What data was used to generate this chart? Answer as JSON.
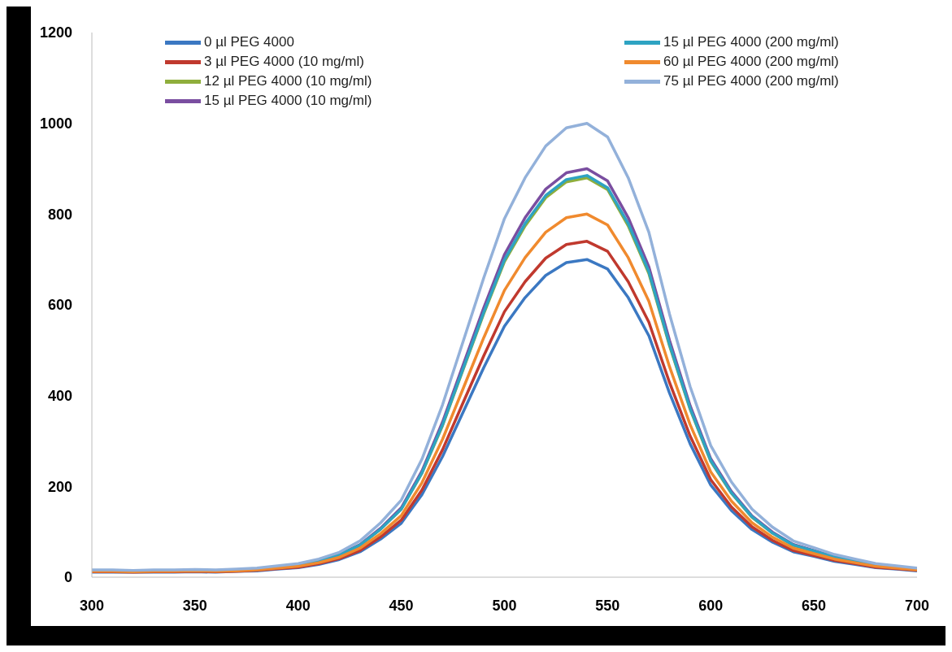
{
  "chart_data": {
    "type": "line",
    "legend": "top",
    "grid": false,
    "marker": "none",
    "line_style": "solid",
    "x": [
      300,
      310,
      320,
      330,
      340,
      350,
      360,
      370,
      380,
      390,
      400,
      410,
      420,
      430,
      440,
      450,
      460,
      470,
      480,
      490,
      500,
      510,
      520,
      530,
      540,
      550,
      560,
      570,
      580,
      590,
      600,
      610,
      620,
      630,
      640,
      650,
      660,
      670,
      680,
      690,
      700
    ],
    "xlim": [
      300,
      700
    ],
    "xticks": [
      300,
      350,
      400,
      450,
      500,
      550,
      600,
      650,
      700
    ],
    "ylim": [
      0,
      1200
    ],
    "yticks": [
      0,
      200,
      400,
      600,
      800,
      1000,
      1200
    ],
    "series": [
      {
        "name": "0 µl PEG 4000",
        "color": "#3b78c2",
        "values": [
          11,
          11,
          11,
          11,
          11,
          12,
          11,
          13,
          14,
          18,
          21,
          28,
          39,
          56,
          84,
          119,
          182,
          266,
          364,
          462,
          553,
          616,
          665,
          693,
          700,
          679,
          616,
          532,
          406,
          294,
          203,
          147,
          105,
          77,
          56,
          46,
          35,
          28,
          21,
          18,
          14
        ]
      },
      {
        "name": "3 µl PEG 4000 (10 mg/ml)",
        "color": "#c0392e",
        "values": [
          12,
          12,
          11,
          12,
          12,
          13,
          12,
          13,
          15,
          19,
          22,
          30,
          41,
          59,
          89,
          126,
          192,
          281,
          385,
          488,
          585,
          651,
          703,
          733,
          740,
          718,
          651,
          562,
          429,
          311,
          215,
          155,
          111,
          81,
          59,
          48,
          37,
          30,
          22,
          19,
          15
        ]
      },
      {
        "name": "12 µl PEG 4000 (10 mg/ml)",
        "color": "#8fae3c",
        "values": [
          null,
          null,
          null,
          null,
          null,
          null,
          null,
          null,
          null,
          22,
          26,
          35,
          48,
          70,
          106,
          150,
          229,
          334,
          458,
          581,
          695,
          774,
          836,
          871,
          880,
          854,
          774,
          669,
          510,
          370,
          255,
          185,
          132,
          97,
          70,
          57,
          44,
          35,
          26,
          22,
          18
        ]
      },
      {
        "name": "15 µl PEG 4000 (10 mg/ml)",
        "color": "#7a4ea0",
        "values": [
          14,
          14,
          14,
          14,
          14,
          15,
          14,
          16,
          18,
          23,
          27,
          36,
          50,
          72,
          108,
          153,
          234,
          342,
          468,
          594,
          711,
          792,
          855,
          891,
          900,
          873,
          792,
          684,
          522,
          378,
          261,
          189,
          135,
          99,
          72,
          59,
          45,
          36,
          27,
          23,
          18
        ]
      },
      {
        "name": "15 µl PEG 4000 (200 mg/ml)",
        "color": "#2ea3c2",
        "values": [
          14,
          14,
          13,
          14,
          14,
          15,
          14,
          16,
          18,
          22,
          27,
          35,
          49,
          71,
          106,
          150,
          230,
          336,
          460,
          584,
          699,
          779,
          841,
          876,
          885,
          858,
          779,
          673,
          513,
          372,
          257,
          186,
          133,
          97,
          71,
          58,
          44,
          35,
          27,
          22,
          18
        ]
      },
      {
        "name": "60 µl PEG 4000 (200 mg/ml)",
        "color": "#f08a2e",
        "values": [
          13,
          13,
          12,
          13,
          13,
          14,
          13,
          14,
          16,
          20,
          24,
          32,
          44,
          64,
          96,
          136,
          208,
          304,
          416,
          528,
          632,
          704,
          760,
          792,
          800,
          776,
          704,
          608,
          464,
          336,
          232,
          168,
          120,
          88,
          64,
          52,
          40,
          32,
          24,
          20,
          16
        ]
      },
      {
        "name": "75 µl PEG 4000 (200 mg/ml)",
        "color": "#93b1da",
        "values": [
          16,
          16,
          15,
          16,
          16,
          17,
          16,
          18,
          20,
          25,
          30,
          40,
          55,
          80,
          120,
          170,
          260,
          380,
          520,
          660,
          790,
          880,
          950,
          990,
          1000,
          970,
          880,
          760,
          580,
          420,
          290,
          210,
          150,
          110,
          80,
          65,
          50,
          40,
          30,
          25,
          20
        ]
      }
    ]
  }
}
